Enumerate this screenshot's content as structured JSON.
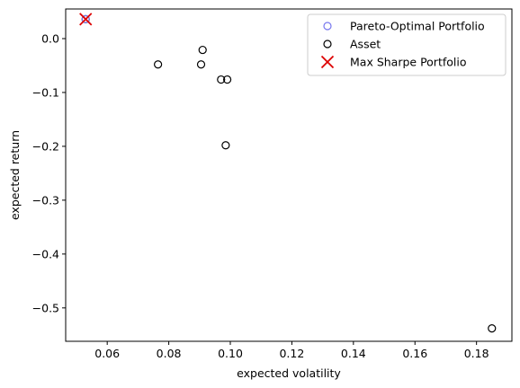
{
  "chart_data": {
    "type": "scatter",
    "xlabel": "expected volatility",
    "ylabel": "expected return",
    "xlim": [
      0.0465,
      0.1915
    ],
    "ylim": [
      -0.562,
      0.055
    ],
    "xticks": [
      "0.06",
      "0.08",
      "0.10",
      "0.12",
      "0.14",
      "0.16",
      "0.18"
    ],
    "xtick_values": [
      0.06,
      0.08,
      0.1,
      0.12,
      0.14,
      0.16,
      0.18
    ],
    "yticks": [
      "0.0",
      "−0.1",
      "−0.2",
      "−0.3",
      "−0.4",
      "−0.5"
    ],
    "ytick_values": [
      0.0,
      -0.1,
      -0.2,
      -0.3,
      -0.4,
      -0.5
    ],
    "grid": false,
    "legend_position": "top-right",
    "series": [
      {
        "name": "Pareto-Optimal Portfolio",
        "marker": "open-circle",
        "color": "#7777ee",
        "points": [
          [
            0.053,
            0.036
          ]
        ]
      },
      {
        "name": "Asset",
        "marker": "open-circle",
        "color": "#000000",
        "points": [
          [
            0.053,
            0.036
          ],
          [
            0.0765,
            -0.048
          ],
          [
            0.0905,
            -0.048
          ],
          [
            0.091,
            -0.021
          ],
          [
            0.097,
            -0.076
          ],
          [
            0.099,
            -0.076
          ],
          [
            0.0985,
            -0.198
          ],
          [
            0.185,
            -0.538
          ]
        ]
      },
      {
        "name": "Max Sharpe Portfolio",
        "marker": "x",
        "color": "#dd0000",
        "points": [
          [
            0.053,
            0.036
          ]
        ]
      }
    ]
  }
}
